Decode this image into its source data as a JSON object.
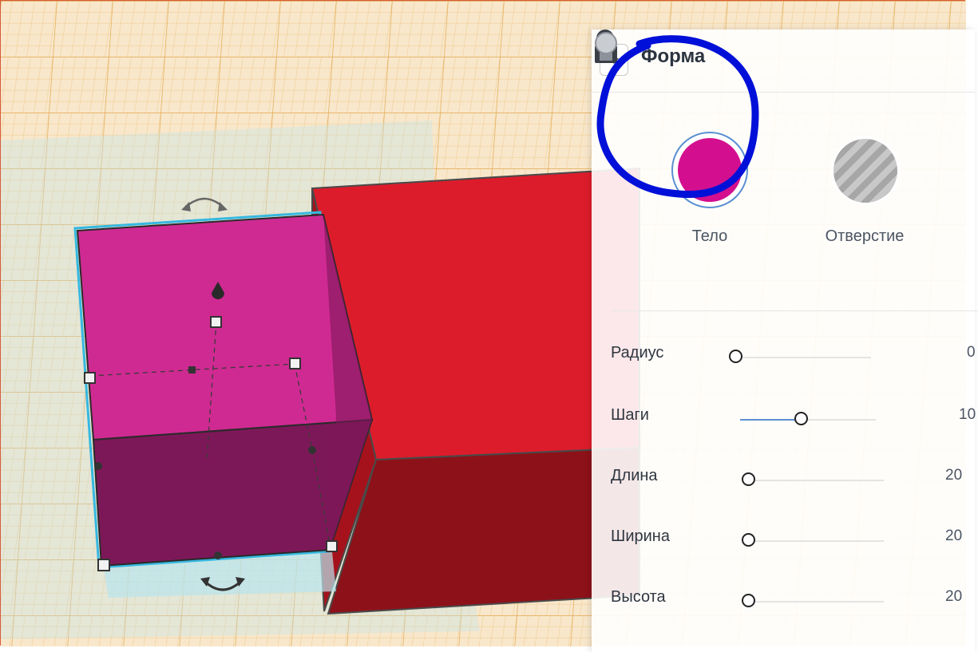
{
  "panel": {
    "title": "Форма",
    "icons": [
      "collapse-chevron-icon",
      "unlock-icon",
      "bulb-icon"
    ]
  },
  "shape_types": [
    {
      "label": "Тело",
      "color": "#d40f8f",
      "selected": true
    },
    {
      "label": "Отверстие",
      "pattern": "striped-gray",
      "selected": false
    }
  ],
  "properties": [
    {
      "label": "Радиус",
      "value": "0",
      "level": 0.0
    },
    {
      "label": "Шаги",
      "value": "10",
      "level": 0.45
    },
    {
      "label": "Длина",
      "value": "20",
      "level": 0.0
    },
    {
      "label": "Ширина",
      "value": "20",
      "level": 0.0
    },
    {
      "label": "Высота",
      "value": "20",
      "level": 0.0
    }
  ],
  "colors": {
    "workplane": "#f7e4c4",
    "grid": "#e8b766",
    "selected_box": "#d02a8c",
    "box_red": "#dc1c2a",
    "selection_outline": "#36b8e0",
    "slider_accent": "#5b8fd1",
    "annotation": "#0010d8"
  }
}
